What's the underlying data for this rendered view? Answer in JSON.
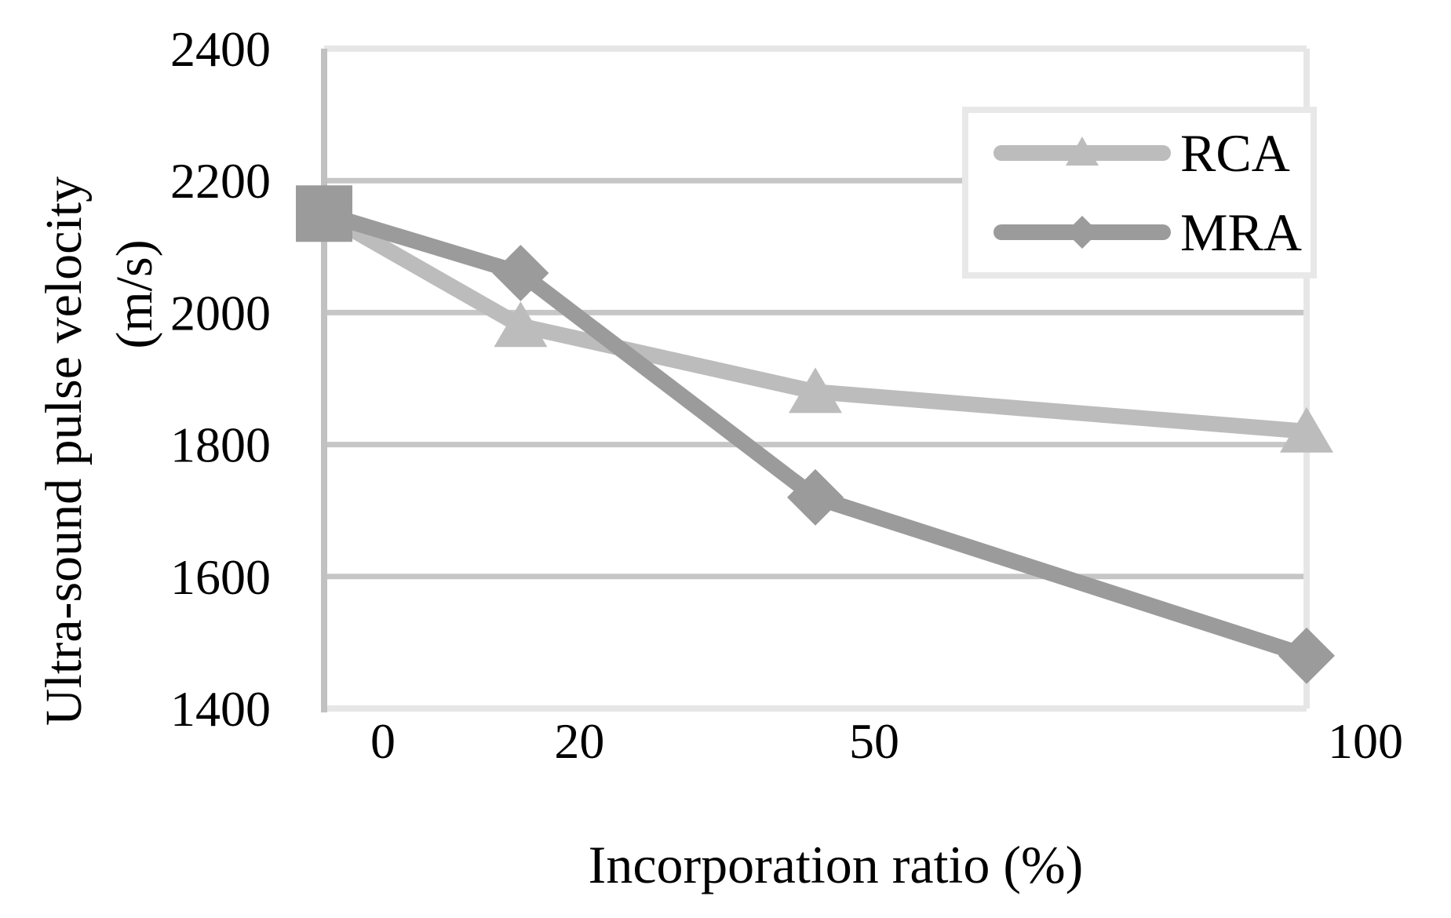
{
  "chart_data": {
    "type": "line",
    "title": "",
    "xlabel": "Incorporation ratio (%)",
    "ylabel_line1": "Ultra-sound pulse velocity",
    "ylabel_line2": "(m/s)",
    "x": [
      0,
      20,
      50,
      100
    ],
    "xtick_labels": [
      "0",
      "20",
      "50",
      "100"
    ],
    "ytick_values": [
      2400,
      2200,
      2000,
      1800,
      1600,
      1400
    ],
    "ytick_labels": [
      "2400",
      "2200",
      "2000",
      "1800",
      "1600",
      "1400"
    ],
    "xlim": [
      0,
      100
    ],
    "ylim": [
      1400,
      2400
    ],
    "grid": "horizontal-only",
    "legend_position": "upper-right-inside",
    "series": [
      {
        "name": "RCA",
        "marker": "triangle",
        "color": "#bcbcbc",
        "values": [
          2150,
          1980,
          1880,
          1820
        ]
      },
      {
        "name": "MRA",
        "marker": "diamond",
        "color": "#9b9b9b",
        "values": [
          2150,
          2060,
          1720,
          1480
        ]
      }
    ],
    "origin_overlap_marker": {
      "shape": "square",
      "color": "#9b9b9b",
      "x": 0,
      "value": 2150
    },
    "colors": {
      "gridline": "#c6c6c6",
      "axis_line": "#c1c1c1",
      "plot_border": "#e6e6e6",
      "legend_border": "#e8e8e8",
      "legend_fill": "#ffffff",
      "text": "#000000"
    }
  }
}
